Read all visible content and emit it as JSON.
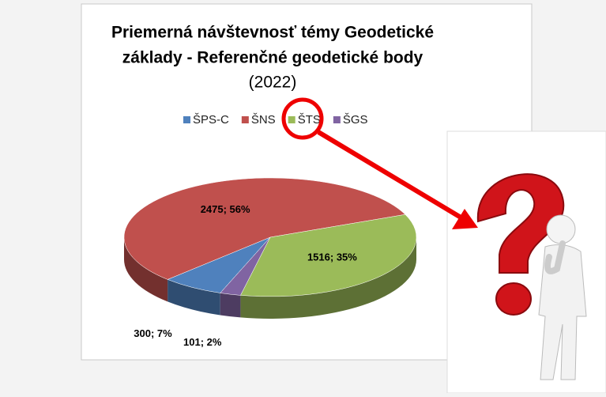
{
  "chart_data": {
    "type": "pie3d",
    "title": "Priemerná návštevnosť témy Geodetické základy - Referenčné geodetické body",
    "subtitle": "(2022)",
    "legend": "top",
    "categories": [
      "ŠPS-C",
      "ŠNS",
      "ŠTS",
      "ŠGS"
    ],
    "values": [
      300,
      2475,
      1516,
      101
    ],
    "value_labels": [
      "300; 7%",
      "2475; 56%",
      "1516; 35%",
      "101; 2%"
    ],
    "colors": [
      "#4f81bd",
      "#c0504d",
      "#9bbb59",
      "#8064a2"
    ]
  }
}
